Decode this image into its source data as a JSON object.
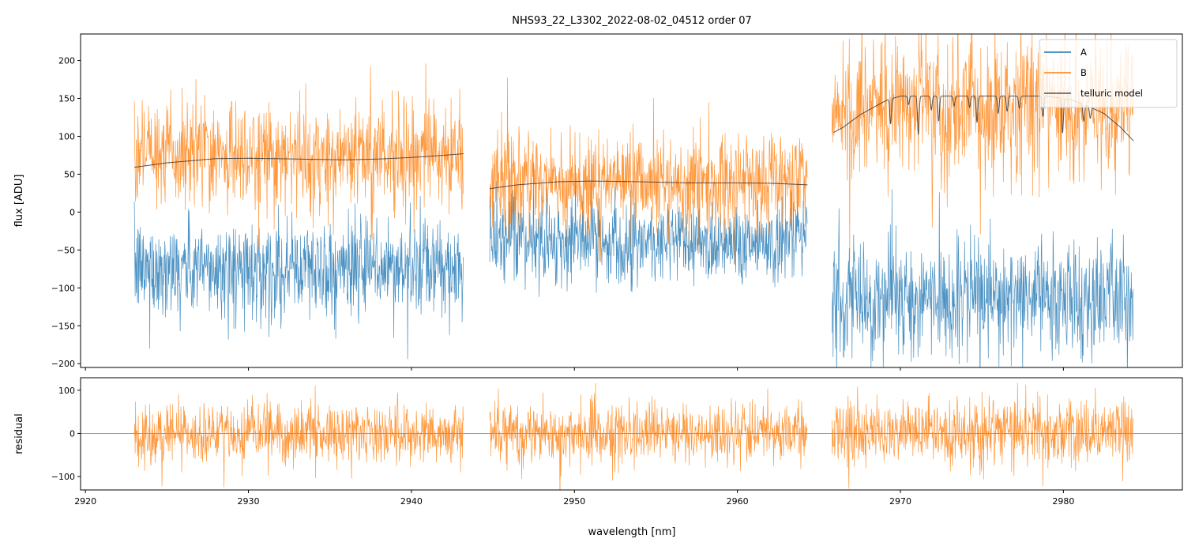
{
  "chart_data": {
    "type": "line",
    "title": "NHS93_22_L3302_2022-08-02_04512  order 07",
    "xlabel": "wavelength [nm]",
    "xlim": [
      2919.7,
      2987.3
    ],
    "xticks": [
      2920,
      2930,
      2940,
      2950,
      2960,
      2970,
      2980
    ],
    "xtick_labels": [
      "2920",
      "2930",
      "2940",
      "2950",
      "2960",
      "2970",
      "2980"
    ],
    "panels": [
      {
        "name": "flux",
        "ylabel": "flux [ADU]",
        "ylim": [
          -205,
          235
        ],
        "yticks": [
          -200,
          -150,
          -100,
          -50,
          0,
          50,
          100,
          150,
          200
        ],
        "ytick_labels": [
          "−200",
          "−150",
          "−100",
          "−50",
          "0",
          "50",
          "100",
          "150",
          "200"
        ],
        "legend": {
          "placement": "top-right",
          "entries": [
            "A",
            "B",
            "telluric model"
          ]
        },
        "series": [
          {
            "name": "A",
            "color": "#1f77b4",
            "segments": [
              {
                "x": [
                  2923.0,
                  2943.2
                ],
                "mean": -75,
                "std": 32
              },
              {
                "x": [
                  2944.8,
                  2964.3
                ],
                "mean": -38,
                "std": 27
              },
              {
                "x": [
                  2965.8,
                  2984.3
                ],
                "mean": -115,
                "std": 37
              }
            ]
          },
          {
            "name": "B",
            "color": "#ff7f0e",
            "segments": [
              {
                "x": [
                  2923.0,
                  2943.2
                ],
                "mean": 75,
                "std": 36
              },
              {
                "x": [
                  2944.8,
                  2964.3
                ],
                "mean": 40,
                "std": 32
              },
              {
                "x": [
                  2965.8,
                  2984.3
                ],
                "mean": 140,
                "std": 48
              }
            ]
          },
          {
            "name": "telluric model",
            "color": "#3a3a3a",
            "segments": [
              {
                "points": [
                  [
                    2923.0,
                    59
                  ],
                  [
                    2925,
                    65
                  ],
                  [
                    2928,
                    70.5
                  ],
                  [
                    2930,
                    71
                  ],
                  [
                    2933,
                    70
                  ],
                  [
                    2936,
                    69
                  ],
                  [
                    2938,
                    70
                  ],
                  [
                    2940,
                    72
                  ],
                  [
                    2942,
                    75
                  ],
                  [
                    2943.2,
                    77
                  ]
                ]
              },
              {
                "points": [
                  [
                    2944.8,
                    31
                  ],
                  [
                    2946.5,
                    36
                  ],
                  [
                    2949,
                    40
                  ],
                  [
                    2951,
                    41
                  ],
                  [
                    2954,
                    40
                  ],
                  [
                    2957,
                    38.5
                  ],
                  [
                    2960,
                    38.5
                  ],
                  [
                    2962,
                    38
                  ],
                  [
                    2964.3,
                    36
                  ]
                ]
              },
              {
                "continuum": [
                  [
                    2965.9,
                    105
                  ],
                  [
                    2966.5,
                    112
                  ],
                  [
                    2967.5,
                    128
                  ],
                  [
                    2968.5,
                    140
                  ],
                  [
                    2969.2,
                    148
                  ],
                  [
                    2970,
                    153
                  ],
                  [
                    2979,
                    153
                  ],
                  [
                    2980.5,
                    148
                  ],
                  [
                    2981.5,
                    140
                  ],
                  [
                    2982.5,
                    130
                  ],
                  [
                    2983.5,
                    112
                  ],
                  [
                    2984.3,
                    94
                  ]
                ],
                "lines": [
                  [
                    2969.4,
                    120
                  ],
                  [
                    2970.5,
                    142
                  ],
                  [
                    2971.1,
                    102
                  ],
                  [
                    2971.9,
                    135
                  ],
                  [
                    2972.35,
                    120
                  ],
                  [
                    2973.3,
                    140
                  ],
                  [
                    2974.25,
                    138
                  ],
                  [
                    2974.7,
                    118
                  ],
                  [
                    2976.0,
                    130
                  ],
                  [
                    2976.55,
                    133
                  ],
                  [
                    2977.3,
                    137
                  ],
                  [
                    2978.75,
                    126
                  ],
                  [
                    2979.95,
                    107
                  ],
                  [
                    2981.25,
                    131
                  ],
                  [
                    2981.65,
                    138
                  ]
                ]
              }
            ]
          }
        ]
      },
      {
        "name": "residual",
        "ylabel": "residual",
        "ylim": [
          -131,
          129
        ],
        "yticks": [
          -100,
          0,
          100
        ],
        "ytick_labels": [
          "−100",
          "0",
          "100"
        ],
        "zero_line": true,
        "series": [
          {
            "name": "residual",
            "color": "#ff7f0e",
            "segments": [
              {
                "x": [
                  2923.0,
                  2943.2
                ],
                "mean": 0,
                "std": 34
              },
              {
                "x": [
                  2944.8,
                  2964.3
                ],
                "mean": 0,
                "std": 34
              },
              {
                "x": [
                  2965.8,
                  2984.3
                ],
                "mean": 0,
                "std": 40
              }
            ]
          }
        ]
      }
    ]
  }
}
